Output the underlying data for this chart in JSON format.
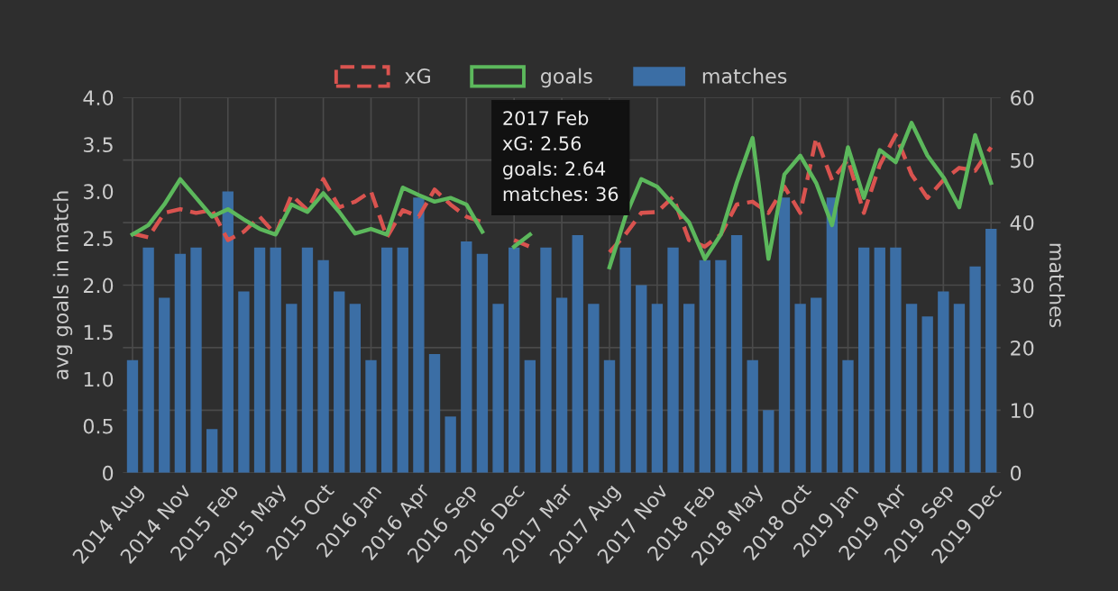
{
  "chart_data": {
    "type": "bar",
    "ylabel": "avg goals in match",
    "y2label": "matches",
    "categories": [
      "2014 Aug",
      null,
      null,
      "2014 Nov",
      null,
      null,
      "2015 Feb",
      null,
      null,
      "2015 May",
      null,
      null,
      "2015 Oct",
      null,
      null,
      "2016 Jan",
      null,
      null,
      "2016 Apr",
      null,
      null,
      "2016 Sep",
      null,
      null,
      "2016 Dec",
      null,
      null,
      "2017 Mar",
      null,
      null,
      "2017 Aug",
      null,
      null,
      "2017 Nov",
      null,
      null,
      "2018 Feb",
      null,
      null,
      "2018 May",
      null,
      null,
      "2018 Oct",
      null,
      null,
      "2019 Jan",
      null,
      null,
      "2019 Apr",
      null,
      null,
      "2019 Sep",
      null,
      null,
      "2019 Dec"
    ],
    "series": [
      {
        "name": "xG",
        "type": "line",
        "line_style": "dashed",
        "color": "#d9534f",
        "values": [
          2.55,
          2.51,
          2.77,
          2.81,
          2.77,
          2.8,
          2.48,
          2.57,
          2.73,
          2.54,
          2.96,
          2.8,
          3.13,
          2.83,
          2.89,
          3.0,
          2.51,
          2.8,
          2.73,
          3.02,
          2.86,
          2.73,
          2.67,
          null,
          2.48,
          2.41,
          null,
          null,
          null,
          null,
          2.35,
          2.54,
          2.77,
          2.78,
          2.94,
          2.48,
          2.41,
          2.54,
          2.86,
          2.89,
          2.77,
          3.05,
          2.77,
          3.57,
          3.12,
          3.34,
          2.77,
          3.28,
          3.6,
          3.18,
          2.93,
          3.12,
          3.25,
          3.22,
          3.47
        ]
      },
      {
        "name": "goals",
        "type": "line",
        "line_style": "solid",
        "color": "#5cb85c",
        "values": [
          2.54,
          2.64,
          2.86,
          3.13,
          2.93,
          2.73,
          2.81,
          2.7,
          2.6,
          2.54,
          2.86,
          2.78,
          2.98,
          2.78,
          2.55,
          2.6,
          2.54,
          3.04,
          2.96,
          2.89,
          2.93,
          2.86,
          2.57,
          null,
          2.41,
          2.54,
          null,
          null,
          null,
          null,
          2.19,
          2.73,
          3.13,
          3.05,
          2.86,
          2.67,
          2.28,
          2.54,
          3.09,
          3.57,
          2.28,
          3.18,
          3.38,
          3.09,
          2.64,
          3.47,
          2.93,
          3.44,
          3.31,
          3.73,
          3.38,
          3.15,
          2.83,
          3.6,
          3.09
        ]
      },
      {
        "name": "matches",
        "axis": "y2",
        "color": "#3b6ea5",
        "values": [
          18,
          36,
          28,
          35,
          36,
          7,
          45,
          29,
          36,
          36,
          27,
          36,
          34,
          29,
          27,
          18,
          36,
          36,
          44,
          19,
          9,
          37,
          35,
          27,
          36,
          18,
          36,
          28,
          38,
          27,
          18,
          36,
          30,
          27,
          36,
          27,
          34,
          34,
          38,
          18,
          10,
          44,
          27,
          28,
          44,
          18,
          36,
          36,
          36,
          27,
          25,
          29,
          27,
          33,
          39
        ]
      }
    ],
    "ylim": [
      0,
      4
    ],
    "yticks": [
      0,
      {
        "value": 0.5,
        "label": "0.5"
      },
      {
        "value": 1,
        "label": "1.0"
      },
      {
        "value": 1.5,
        "label": "1.5"
      },
      {
        "value": 2,
        "label": "2.0"
      },
      {
        "value": 2.5,
        "label": "2.5"
      },
      {
        "value": 3,
        "label": "3.0"
      },
      {
        "value": 3.5,
        "label": "3.5"
      },
      {
        "value": 4,
        "label": "4.0"
      }
    ],
    "y2lim": [
      0,
      60
    ],
    "y2ticks": [
      0,
      10,
      20,
      30,
      40,
      50,
      60
    ],
    "grid": true,
    "legend": "top",
    "annotations": [
      "2017 Feb\nxG: 2.56\ngoals: 2.64\nmatches: 36"
    ]
  }
}
